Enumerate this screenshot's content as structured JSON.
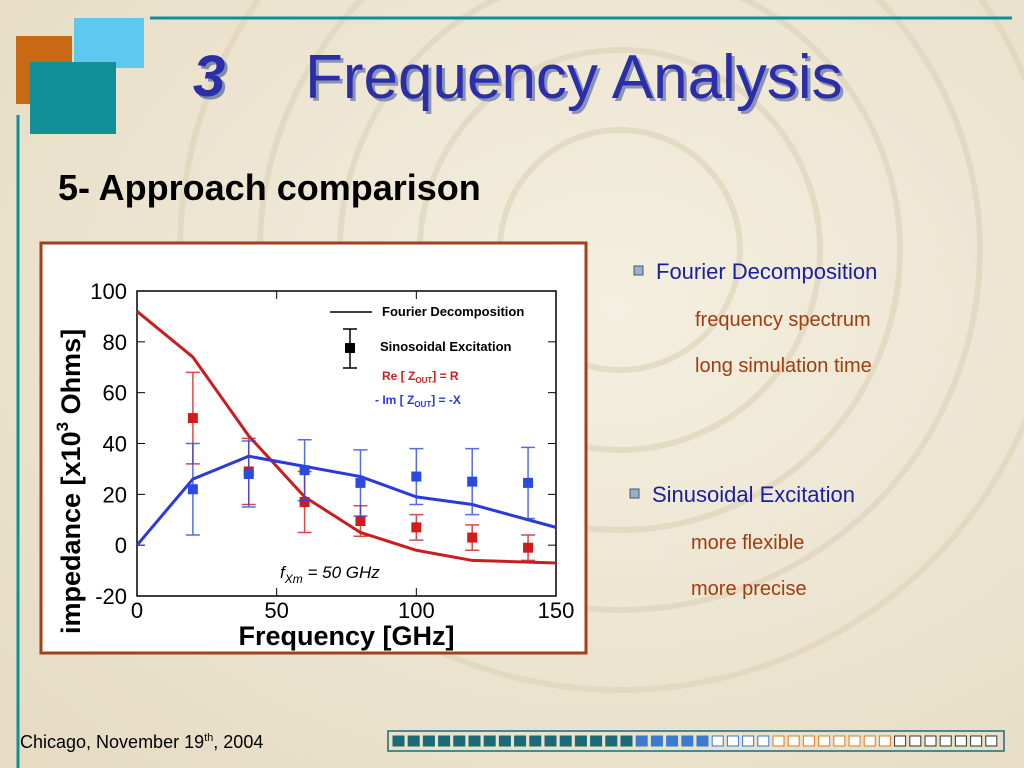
{
  "slide": {
    "number": "3",
    "title": "Frequency Analysis",
    "subtitle": "5- Approach comparison",
    "bullets": [
      {
        "text": "Fourier Decomposition",
        "items": [
          "frequency spectrum",
          "long simulation time"
        ]
      },
      {
        "text": "Sinusoidal Excitation",
        "items": [
          "more flexible",
          "more precise"
        ]
      }
    ],
    "footer": [
      "Chicago, November 19",
      "th",
      ", 2004"
    ]
  },
  "chart_data": {
    "type": "line",
    "xlabel": "Frequency   [GHz]",
    "ylabel": [
      "impedance   [x10",
      "3",
      "  Ohms]"
    ],
    "xlim": [
      0,
      150
    ],
    "xticks": [
      0,
      50,
      100,
      150
    ],
    "ylim": [
      -20,
      100
    ],
    "yticks": [
      -20,
      0,
      20,
      40,
      60,
      80,
      100
    ],
    "legend": {
      "styles": [
        "Fourier Decomposition",
        "Sinosoidal Excitation"
      ],
      "components": [
        [
          "Re [ Z",
          "OUT",
          "] = R"
        ],
        [
          "- Im [ Z",
          "OUT",
          "] = -X"
        ]
      ]
    },
    "annotation": [
      "f",
      "Xm",
      " = 50 GHz"
    ],
    "series": [
      {
        "style": "line",
        "color": "#c81e1e",
        "x": [
          0,
          20,
          40,
          60,
          80,
          100,
          120,
          150
        ],
        "values": [
          92,
          74,
          43,
          19,
          5,
          -2,
          -6,
          -7
        ]
      },
      {
        "style": "line",
        "color": "#2a3ad8",
        "x": [
          0,
          20,
          40,
          60,
          80,
          100,
          120,
          150
        ],
        "values": [
          0,
          26,
          35,
          31,
          27,
          19,
          16,
          7
        ]
      },
      {
        "style": "points",
        "color": "#d01c1c",
        "x": [
          20,
          40,
          60,
          80,
          100,
          120,
          140
        ],
        "values": [
          50,
          29,
          17,
          9.5,
          7,
          3,
          -1
        ],
        "errors": [
          18,
          13,
          12,
          6,
          5,
          5,
          5
        ]
      },
      {
        "style": "points",
        "color": "#2a4ae0",
        "x": [
          20,
          40,
          60,
          80,
          100,
          120,
          140
        ],
        "values": [
          22,
          28,
          29.5,
          24.5,
          27,
          25,
          24.5
        ],
        "errors": [
          18,
          13,
          12,
          13,
          11,
          13,
          14
        ]
      }
    ]
  }
}
